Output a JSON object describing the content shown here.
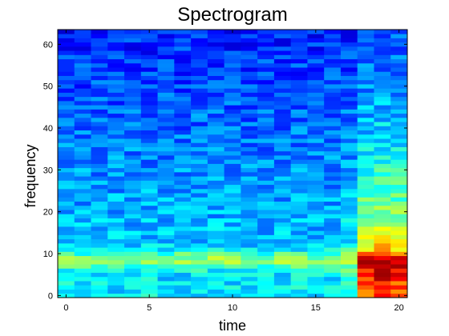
{
  "chart_data": {
    "type": "heatmap",
    "title": "Spectrogram",
    "xlabel": "time",
    "ylabel": "frequency",
    "xlim": [
      -0.5,
      20.5
    ],
    "ylim": [
      -0.5,
      63.5
    ],
    "xticks": [
      0,
      5,
      10,
      15,
      20
    ],
    "yticks": [
      0,
      10,
      20,
      30,
      40,
      50,
      60
    ],
    "x_bins": 21,
    "y_bins": 64,
    "colormap": "jet",
    "color_range": [
      0,
      1
    ],
    "grid": false
  }
}
